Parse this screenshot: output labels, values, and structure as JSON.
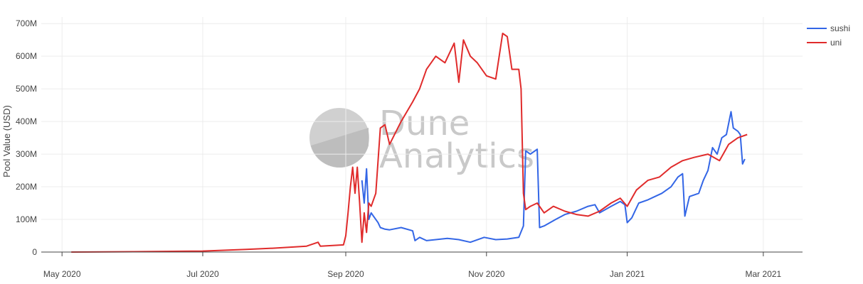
{
  "chart_data": {
    "type": "line",
    "title": "",
    "xlabel": "",
    "ylabel": "Pool Value (USD)",
    "x_range": [
      "2020-04-22",
      "2021-03-18"
    ],
    "ylim": [
      0,
      720000000
    ],
    "y_ticks": [
      0,
      100000000,
      200000000,
      300000000,
      400000000,
      500000000,
      600000000,
      700000000
    ],
    "y_tick_labels": [
      "0",
      "100M",
      "200M",
      "300M",
      "400M",
      "500M",
      "600M",
      "700M"
    ],
    "x_ticks": [
      "2020-05-01",
      "2020-07-01",
      "2020-09-01",
      "2020-11-01",
      "2021-01-01",
      "2021-03-01"
    ],
    "x_tick_labels": [
      "May 2020",
      "Jul 2020",
      "Sep 2020",
      "Nov 2020",
      "Jan 2021",
      "Mar 2021"
    ],
    "grid": true,
    "legend_position": "top-right",
    "watermark": [
      "Dune",
      "Analytics"
    ],
    "series": [
      {
        "name": "sushi",
        "color": "#3366e6",
        "points": [
          [
            "2020-09-08",
            220000000
          ],
          [
            "2020-09-09",
            150000000
          ],
          [
            "2020-09-10",
            255000000
          ],
          [
            "2020-09-11",
            100000000
          ],
          [
            "2020-09-12",
            120000000
          ],
          [
            "2020-09-13",
            110000000
          ],
          [
            "2020-09-15",
            90000000
          ],
          [
            "2020-09-16",
            75000000
          ],
          [
            "2020-09-18",
            70000000
          ],
          [
            "2020-09-20",
            68000000
          ],
          [
            "2020-09-25",
            75000000
          ],
          [
            "2020-09-30",
            65000000
          ],
          [
            "2020-10-01",
            35000000
          ],
          [
            "2020-10-03",
            45000000
          ],
          [
            "2020-10-06",
            35000000
          ],
          [
            "2020-10-10",
            38000000
          ],
          [
            "2020-10-15",
            42000000
          ],
          [
            "2020-10-20",
            38000000
          ],
          [
            "2020-10-25",
            30000000
          ],
          [
            "2020-10-31",
            45000000
          ],
          [
            "2020-11-05",
            38000000
          ],
          [
            "2020-11-10",
            40000000
          ],
          [
            "2020-11-15",
            45000000
          ],
          [
            "2020-11-17",
            80000000
          ],
          [
            "2020-11-18",
            310000000
          ],
          [
            "2020-11-20",
            300000000
          ],
          [
            "2020-11-22",
            310000000
          ],
          [
            "2020-11-23",
            315000000
          ],
          [
            "2020-11-24",
            75000000
          ],
          [
            "2020-11-26",
            80000000
          ],
          [
            "2020-12-01",
            100000000
          ],
          [
            "2020-12-05",
            115000000
          ],
          [
            "2020-12-10",
            125000000
          ],
          [
            "2020-12-15",
            140000000
          ],
          [
            "2020-12-18",
            145000000
          ],
          [
            "2020-12-20",
            120000000
          ],
          [
            "2020-12-25",
            140000000
          ],
          [
            "2020-12-29",
            155000000
          ],
          [
            "2020-12-31",
            145000000
          ],
          [
            "2021-01-01",
            90000000
          ],
          [
            "2021-01-03",
            105000000
          ],
          [
            "2021-01-06",
            150000000
          ],
          [
            "2021-01-10",
            160000000
          ],
          [
            "2021-01-13",
            170000000
          ],
          [
            "2021-01-16",
            180000000
          ],
          [
            "2021-01-20",
            200000000
          ],
          [
            "2021-01-23",
            230000000
          ],
          [
            "2021-01-25",
            240000000
          ],
          [
            "2021-01-26",
            110000000
          ],
          [
            "2021-01-28",
            170000000
          ],
          [
            "2021-02-01",
            180000000
          ],
          [
            "2021-02-03",
            220000000
          ],
          [
            "2021-02-05",
            250000000
          ],
          [
            "2021-02-07",
            320000000
          ],
          [
            "2021-02-09",
            300000000
          ],
          [
            "2021-02-11",
            350000000
          ],
          [
            "2021-02-13",
            360000000
          ],
          [
            "2021-02-15",
            430000000
          ],
          [
            "2021-02-16",
            380000000
          ],
          [
            "2021-02-18",
            370000000
          ],
          [
            "2021-02-19",
            360000000
          ],
          [
            "2021-02-20",
            270000000
          ],
          [
            "2021-02-21",
            285000000
          ]
        ]
      },
      {
        "name": "uni",
        "color": "#e02b2b",
        "points": [
          [
            "2020-05-05",
            0
          ],
          [
            "2020-06-01",
            1000000
          ],
          [
            "2020-07-01",
            3000000
          ],
          [
            "2020-07-20",
            8000000
          ],
          [
            "2020-08-01",
            12000000
          ],
          [
            "2020-08-15",
            18000000
          ],
          [
            "2020-08-20",
            30000000
          ],
          [
            "2020-08-21",
            18000000
          ],
          [
            "2020-08-31",
            22000000
          ],
          [
            "2020-09-01",
            50000000
          ],
          [
            "2020-09-02",
            120000000
          ],
          [
            "2020-09-03",
            200000000
          ],
          [
            "2020-09-04",
            260000000
          ],
          [
            "2020-09-05",
            180000000
          ],
          [
            "2020-09-06",
            260000000
          ],
          [
            "2020-09-07",
            150000000
          ],
          [
            "2020-09-08",
            30000000
          ],
          [
            "2020-09-09",
            120000000
          ],
          [
            "2020-09-10",
            60000000
          ],
          [
            "2020-09-11",
            150000000
          ],
          [
            "2020-09-12",
            140000000
          ],
          [
            "2020-09-14",
            180000000
          ],
          [
            "2020-09-16",
            380000000
          ],
          [
            "2020-09-18",
            390000000
          ],
          [
            "2020-09-20",
            330000000
          ],
          [
            "2020-09-25",
            400000000
          ],
          [
            "2020-09-30",
            460000000
          ],
          [
            "2020-10-03",
            500000000
          ],
          [
            "2020-10-06",
            560000000
          ],
          [
            "2020-10-10",
            600000000
          ],
          [
            "2020-10-14",
            580000000
          ],
          [
            "2020-10-18",
            640000000
          ],
          [
            "2020-10-20",
            520000000
          ],
          [
            "2020-10-22",
            650000000
          ],
          [
            "2020-10-25",
            600000000
          ],
          [
            "2020-10-28",
            580000000
          ],
          [
            "2020-11-01",
            540000000
          ],
          [
            "2020-11-05",
            530000000
          ],
          [
            "2020-11-08",
            670000000
          ],
          [
            "2020-11-10",
            660000000
          ],
          [
            "2020-11-12",
            560000000
          ],
          [
            "2020-11-15",
            560000000
          ],
          [
            "2020-11-16",
            500000000
          ],
          [
            "2020-11-17",
            180000000
          ],
          [
            "2020-11-18",
            130000000
          ],
          [
            "2020-11-20",
            140000000
          ],
          [
            "2020-11-23",
            150000000
          ],
          [
            "2020-11-26",
            120000000
          ],
          [
            "2020-11-30",
            140000000
          ],
          [
            "2020-12-05",
            125000000
          ],
          [
            "2020-12-10",
            115000000
          ],
          [
            "2020-12-15",
            110000000
          ],
          [
            "2020-12-20",
            125000000
          ],
          [
            "2020-12-25",
            150000000
          ],
          [
            "2020-12-29",
            165000000
          ],
          [
            "2021-01-01",
            140000000
          ],
          [
            "2021-01-05",
            190000000
          ],
          [
            "2021-01-10",
            220000000
          ],
          [
            "2021-01-15",
            230000000
          ],
          [
            "2021-01-20",
            260000000
          ],
          [
            "2021-01-25",
            280000000
          ],
          [
            "2021-01-30",
            290000000
          ],
          [
            "2021-02-05",
            300000000
          ],
          [
            "2021-02-10",
            280000000
          ],
          [
            "2021-02-14",
            330000000
          ],
          [
            "2021-02-18",
            350000000
          ],
          [
            "2021-02-22",
            360000000
          ]
        ]
      }
    ]
  }
}
